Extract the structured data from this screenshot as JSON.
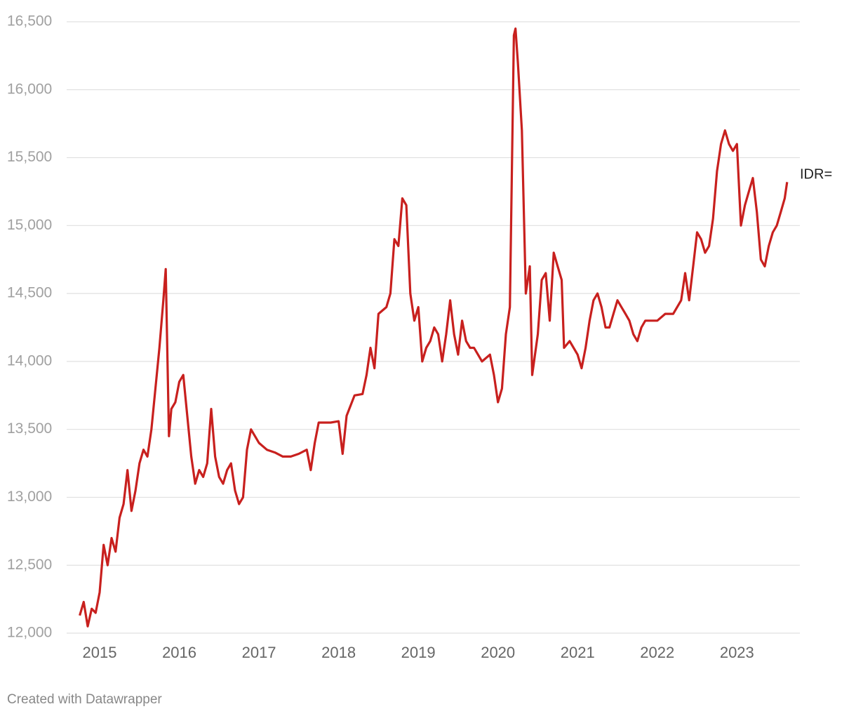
{
  "chart_data": {
    "type": "line",
    "footer": "Created with Datawrapper",
    "x": [
      2014.75,
      2014.8,
      2014.85,
      2014.9,
      2014.95,
      2015.0,
      2015.05,
      2015.1,
      2015.15,
      2015.2,
      2015.25,
      2015.3,
      2015.35,
      2015.4,
      2015.45,
      2015.5,
      2015.55,
      2015.6,
      2015.65,
      2015.7,
      2015.75,
      2015.8,
      2015.83,
      2015.87,
      2015.9,
      2015.95,
      2016.0,
      2016.05,
      2016.1,
      2016.15,
      2016.2,
      2016.25,
      2016.3,
      2016.35,
      2016.4,
      2016.45,
      2016.5,
      2016.55,
      2016.6,
      2016.65,
      2016.7,
      2016.75,
      2016.8,
      2016.85,
      2016.9,
      2016.95,
      2017.0,
      2017.1,
      2017.2,
      2017.3,
      2017.4,
      2017.5,
      2017.6,
      2017.65,
      2017.7,
      2017.75,
      2017.8,
      2017.9,
      2018.0,
      2018.05,
      2018.1,
      2018.2,
      2018.3,
      2018.35,
      2018.4,
      2018.45,
      2018.5,
      2018.6,
      2018.65,
      2018.7,
      2018.75,
      2018.8,
      2018.85,
      2018.9,
      2018.95,
      2019.0,
      2019.05,
      2019.1,
      2019.15,
      2019.2,
      2019.25,
      2019.3,
      2019.35,
      2019.4,
      2019.45,
      2019.5,
      2019.55,
      2019.6,
      2019.65,
      2019.7,
      2019.8,
      2019.9,
      2019.95,
      2020.0,
      2020.05,
      2020.1,
      2020.15,
      2020.2,
      2020.22,
      2020.25,
      2020.3,
      2020.35,
      2020.4,
      2020.43,
      2020.5,
      2020.55,
      2020.6,
      2020.65,
      2020.7,
      2020.75,
      2020.8,
      2020.83,
      2020.9,
      2021.0,
      2021.05,
      2021.1,
      2021.15,
      2021.2,
      2021.25,
      2021.3,
      2021.35,
      2021.4,
      2021.45,
      2021.5,
      2021.55,
      2021.6,
      2021.65,
      2021.7,
      2021.75,
      2021.8,
      2021.85,
      2021.9,
      2022.0,
      2022.1,
      2022.2,
      2022.3,
      2022.35,
      2022.4,
      2022.45,
      2022.5,
      2022.55,
      2022.6,
      2022.65,
      2022.7,
      2022.75,
      2022.8,
      2022.85,
      2022.9,
      2022.95,
      2023.0,
      2023.05,
      2023.1,
      2023.15,
      2023.2,
      2023.25,
      2023.3,
      2023.35,
      2023.4,
      2023.45,
      2023.5,
      2023.55,
      2023.6,
      2023.63
    ],
    "series": [
      {
        "name": "IDR=",
        "color": "#c8201e",
        "values": [
          12130,
          12230,
          12050,
          12180,
          12150,
          12300,
          12650,
          12500,
          12700,
          12600,
          12850,
          12950,
          13200,
          12900,
          13050,
          13250,
          13350,
          13300,
          13500,
          13800,
          14100,
          14450,
          14680,
          13450,
          13650,
          13700,
          13850,
          13900,
          13600,
          13300,
          13100,
          13200,
          13150,
          13250,
          13650,
          13300,
          13150,
          13100,
          13200,
          13250,
          13050,
          12950,
          13000,
          13350,
          13500,
          13450,
          13400,
          13350,
          13330,
          13300,
          13300,
          13320,
          13350,
          13200,
          13400,
          13550,
          13550,
          13550,
          13560,
          13320,
          13600,
          13750,
          13760,
          13900,
          14100,
          13950,
          14350,
          14400,
          14500,
          14900,
          14850,
          15200,
          15150,
          14500,
          14300,
          14400,
          14000,
          14100,
          14150,
          14250,
          14200,
          14000,
          14200,
          14450,
          14200,
          14050,
          14300,
          14150,
          14100,
          14100,
          14000,
          14050,
          13900,
          13700,
          13800,
          14200,
          14400,
          16400,
          16450,
          16200,
          15700,
          14500,
          14700,
          13900,
          14200,
          14600,
          14650,
          14300,
          14800,
          14700,
          14600,
          14100,
          14150,
          14050,
          13950,
          14100,
          14300,
          14450,
          14500,
          14400,
          14250,
          14250,
          14350,
          14450,
          14400,
          14350,
          14300,
          14200,
          14150,
          14250,
          14300,
          14300,
          14300,
          14350,
          14350,
          14450,
          14650,
          14450,
          14700,
          14950,
          14900,
          14800,
          14850,
          15050,
          15400,
          15600,
          15700,
          15600,
          15550,
          15600,
          15000,
          15150,
          15250,
          15350,
          15100,
          14750,
          14700,
          14850,
          14950,
          15000,
          15100,
          15200,
          15320
        ]
      }
    ],
    "xlim": [
      2014.586,
      2023.79
    ],
    "xticks": [
      2015,
      2016,
      2017,
      2018,
      2019,
      2020,
      2021,
      2022,
      2023
    ],
    "ylim": [
      12000,
      16500
    ],
    "yticks": [
      {
        "value": 12000,
        "label": "12,000"
      },
      {
        "value": 12500,
        "label": "12,500"
      },
      {
        "value": 13000,
        "label": "13,000"
      },
      {
        "value": 13500,
        "label": "13,500"
      },
      {
        "value": 14000,
        "label": "14,000"
      },
      {
        "value": 14500,
        "label": "14,500"
      },
      {
        "value": 15000,
        "label": "15,000"
      },
      {
        "value": 15500,
        "label": "15,500"
      },
      {
        "value": 16000,
        "label": "16,000"
      },
      {
        "value": 16500,
        "label": "16,500"
      }
    ],
    "grid": true
  }
}
